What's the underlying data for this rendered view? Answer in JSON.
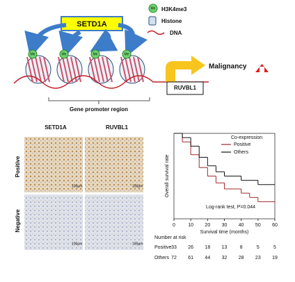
{
  "diagram": {
    "enzyme": "SETD1A",
    "me_label": "Me",
    "legend": [
      "H3K4me3",
      "Histone",
      "DNA"
    ],
    "outcome": "Malignancy",
    "gene": "RUVBL1",
    "region": "Gene promoter region"
  },
  "ihc": {
    "columns": [
      "SETD1A",
      "RUVBL1"
    ],
    "rows": [
      "Positive",
      "Negative"
    ],
    "scale": "100μm"
  },
  "chart_data": {
    "type": "line",
    "xlabel": "Survival time (months)",
    "ylabel": "Overall survival rate",
    "legend_title": "Co-expression",
    "annotation": "Log-rank test, P=0.044",
    "xlim": [
      0,
      60
    ],
    "xticks": [
      0,
      10,
      20,
      30,
      40,
      50,
      60
    ],
    "ylim": [
      0,
      1
    ],
    "series": [
      {
        "name": "Positive",
        "color": "#a0282d",
        "x": [
          0,
          5,
          10,
          15,
          20,
          25,
          30,
          40,
          45,
          50,
          60
        ],
        "values": [
          1,
          0.9,
          0.75,
          0.6,
          0.5,
          0.42,
          0.35,
          0.3,
          0.25,
          0.2,
          0.18
        ]
      },
      {
        "name": "Others",
        "color": "#111111",
        "x": [
          0,
          5,
          10,
          15,
          20,
          25,
          30,
          40,
          50,
          60
        ],
        "values": [
          1,
          0.95,
          0.85,
          0.72,
          0.62,
          0.55,
          0.5,
          0.45,
          0.4,
          0.4
        ]
      }
    ],
    "at_risk": {
      "title": "Number at risk",
      "rows": [
        {
          "name": "Positive",
          "values": [
            33,
            26,
            18,
            13,
            8,
            5,
            5
          ]
        },
        {
          "name": "Others",
          "values": [
            72,
            61,
            44,
            32,
            28,
            23,
            19
          ]
        }
      ]
    }
  }
}
